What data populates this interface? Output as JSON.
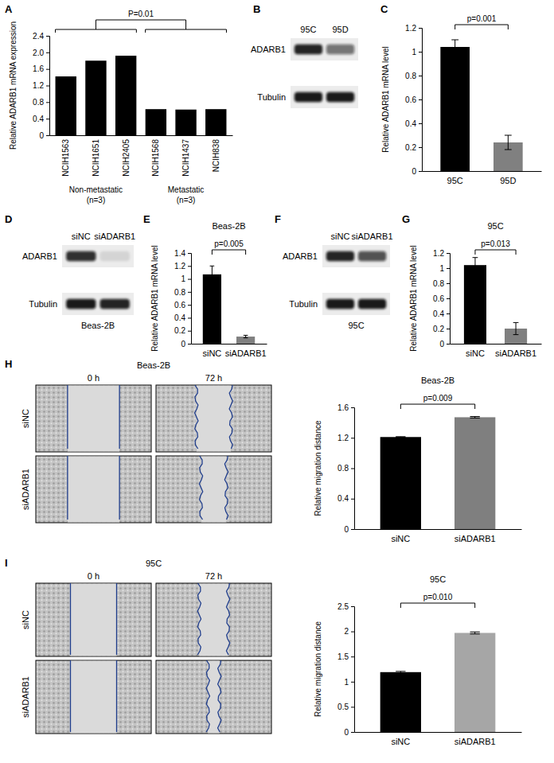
{
  "chart_data": [
    {
      "type": "bar",
      "panel_label": "A",
      "categories": [
        "NCIH1563",
        "NCIH1651",
        "NCIH2405",
        "NCIH1568",
        "NCIH1437",
        "NCIH838"
      ],
      "values": [
        1.42,
        1.8,
        1.92,
        0.63,
        0.62,
        0.63
      ],
      "color": "#000000",
      "y_label": "Relative ADARB1 mRNA expression",
      "ylim": [
        0,
        2.4
      ],
      "yticks": [
        0,
        0.4,
        0.8,
        1.2,
        1.6,
        {
          "value": 2,
          "label": "2.0"
        },
        2.4
      ],
      "groups": [
        {
          "label": "Non-metastatic",
          "count_label": "(n=3)"
        },
        {
          "label": "Metastatic",
          "count_label": "(n=3)"
        }
      ],
      "annotations": [
        {
          "text": "P=0.01"
        }
      ]
    },
    {
      "type": "bar",
      "panel_label": "C",
      "categories": [
        "95C",
        "95D"
      ],
      "values": [
        1.04,
        0.24
      ],
      "errors": [
        0.06,
        0.06
      ],
      "colors": [
        "#000000",
        "#808080"
      ],
      "y_label": "Relative ADARB1 mRNA level",
      "ylim": [
        0,
        1.2
      ],
      "yticks": [
        0,
        0.2,
        0.4,
        0.6,
        0.8,
        1,
        1.2
      ],
      "annotations": [
        {
          "text": "p=0.001"
        }
      ]
    },
    {
      "type": "bar",
      "panel_label": "E",
      "title": "Beas-2B",
      "categories": [
        "siNC",
        "siADARB1"
      ],
      "values": [
        1.07,
        0.11
      ],
      "errors": [
        0.13,
        0.02
      ],
      "colors": [
        "#000000",
        "#808080"
      ],
      "y_label": "Relative ADARB1 mRNA level",
      "ylim": [
        0,
        1.4
      ],
      "yticks": [
        0,
        0.2,
        0.4,
        0.6,
        0.8,
        1,
        1.2,
        1.4
      ],
      "annotations": [
        {
          "text": "p=0.005"
        }
      ]
    },
    {
      "type": "bar",
      "panel_label": "G",
      "title": "95C",
      "categories": [
        "siNC",
        "siADARB1"
      ],
      "values": [
        1.04,
        0.2
      ],
      "errors": [
        0.1,
        0.08
      ],
      "colors": [
        "#000000",
        "#808080"
      ],
      "y_label": "Relative ADARB1 mRNA level",
      "ylim": [
        0,
        1.2
      ],
      "yticks": [
        0,
        0.2,
        0.4,
        0.6,
        0.8,
        1,
        1.2
      ],
      "annotations": [
        {
          "text": "p=0.013"
        }
      ]
    },
    {
      "type": "bar",
      "title": "Beas-2B",
      "categories": [
        "siNC",
        "siADARB1"
      ],
      "values": [
        1.21,
        1.47
      ],
      "errors": [
        0.005,
        0.01
      ],
      "colors": [
        "#000000",
        "#7f7f7f"
      ],
      "y_label": "Relative migration distance",
      "ylim": [
        0,
        1.6
      ],
      "yticks": [
        0,
        0.4,
        0.8,
        1.2,
        1.6
      ],
      "annotations": [
        {
          "text": "p=0.009"
        }
      ]
    },
    {
      "type": "bar",
      "title": "95C",
      "categories": [
        "siNC",
        "siADARB1"
      ],
      "values": [
        1.19,
        1.97
      ],
      "errors": [
        0.015,
        0.02
      ],
      "colors": [
        "#000000",
        "#a6a6a6"
      ],
      "y_label": "Relative migration distance",
      "ylim": [
        0,
        2.5
      ],
      "yticks": [
        0,
        0.5,
        1,
        1.5,
        2,
        2.5
      ],
      "annotations": [
        {
          "text": "p=0.010"
        }
      ]
    }
  ],
  "blots": [
    {
      "panel_label": "B",
      "lanes": [
        "95C",
        "95D"
      ],
      "rows": [
        "ADARB1",
        "Tubulin"
      ],
      "band_intensity": [
        [
          0.9,
          0.55
        ],
        [
          0.95,
          0.95
        ]
      ]
    },
    {
      "panel_label": "D",
      "lanes": [
        "siNC",
        "siADARB1"
      ],
      "rows": [
        "ADARB1",
        "Tubulin"
      ],
      "caption": "Beas-2B",
      "band_intensity": [
        [
          0.85,
          0.1
        ],
        [
          0.95,
          0.9
        ]
      ]
    },
    {
      "panel_label": "F",
      "lanes": [
        "siNC",
        "siADARB1"
      ],
      "rows": [
        "ADARB1",
        "Tubulin"
      ],
      "caption": "95C",
      "band_intensity": [
        [
          0.9,
          0.7
        ],
        [
          0.95,
          0.95
        ]
      ]
    }
  ],
  "wounds": [
    {
      "panel_label": "H",
      "title": "Beas-2B",
      "times": [
        "0 h",
        "72 h"
      ],
      "conditions": [
        "siNC",
        "siADARB1"
      ],
      "gap_fraction": [
        [
          0.45,
          0.3
        ],
        [
          0.45,
          0.22
        ]
      ]
    },
    {
      "panel_label": "I",
      "title": "95C",
      "times": [
        "0 h",
        "72 h"
      ],
      "conditions": [
        "siNC",
        "siADARB1"
      ],
      "gap_fraction": [
        [
          0.4,
          0.25
        ],
        [
          0.4,
          0.1
        ]
      ]
    }
  ]
}
